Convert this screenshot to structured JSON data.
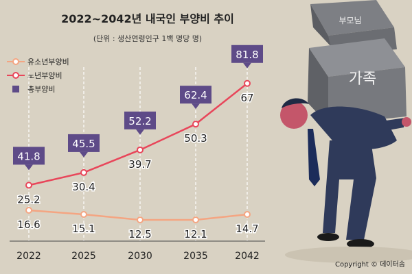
{
  "header": {
    "title": "2022~2042년 내국인 부양비 추이",
    "unit_note": "(단위 : 생산연령인구 1백 명당 명)"
  },
  "legend": {
    "youth": "유소년부양비",
    "elderly": "노년부양비",
    "total": "총부양비"
  },
  "illustration": {
    "box_big_label": "가족",
    "box_small_label": "부모님"
  },
  "copyright": "Copyright © 데이터솜",
  "colors": {
    "youth": "#f4a582",
    "elderly": "#e8465a",
    "total": "#5e4b88",
    "background": "#d9d2c3"
  },
  "chart_data": {
    "type": "line",
    "title": "2022~2042년 내국인 부양비 추이",
    "subtitle": "(단위 : 생산연령인구 1백 명당 명)",
    "categories": [
      "2022",
      "2025",
      "2030",
      "2035",
      "2042"
    ],
    "series": [
      {
        "name": "유소년부양비",
        "values": [
          16.6,
          15.1,
          12.5,
          12.1,
          14.7
        ]
      },
      {
        "name": "노년부양비",
        "values": [
          25.2,
          30.4,
          39.7,
          50.3,
          67
        ]
      },
      {
        "name": "총부양비",
        "values": [
          41.8,
          45.5,
          52.2,
          62.4,
          81.8
        ]
      }
    ],
    "ylim": [
      0,
      90
    ],
    "grid": "vertical dashed",
    "legend_position": "top-left"
  }
}
